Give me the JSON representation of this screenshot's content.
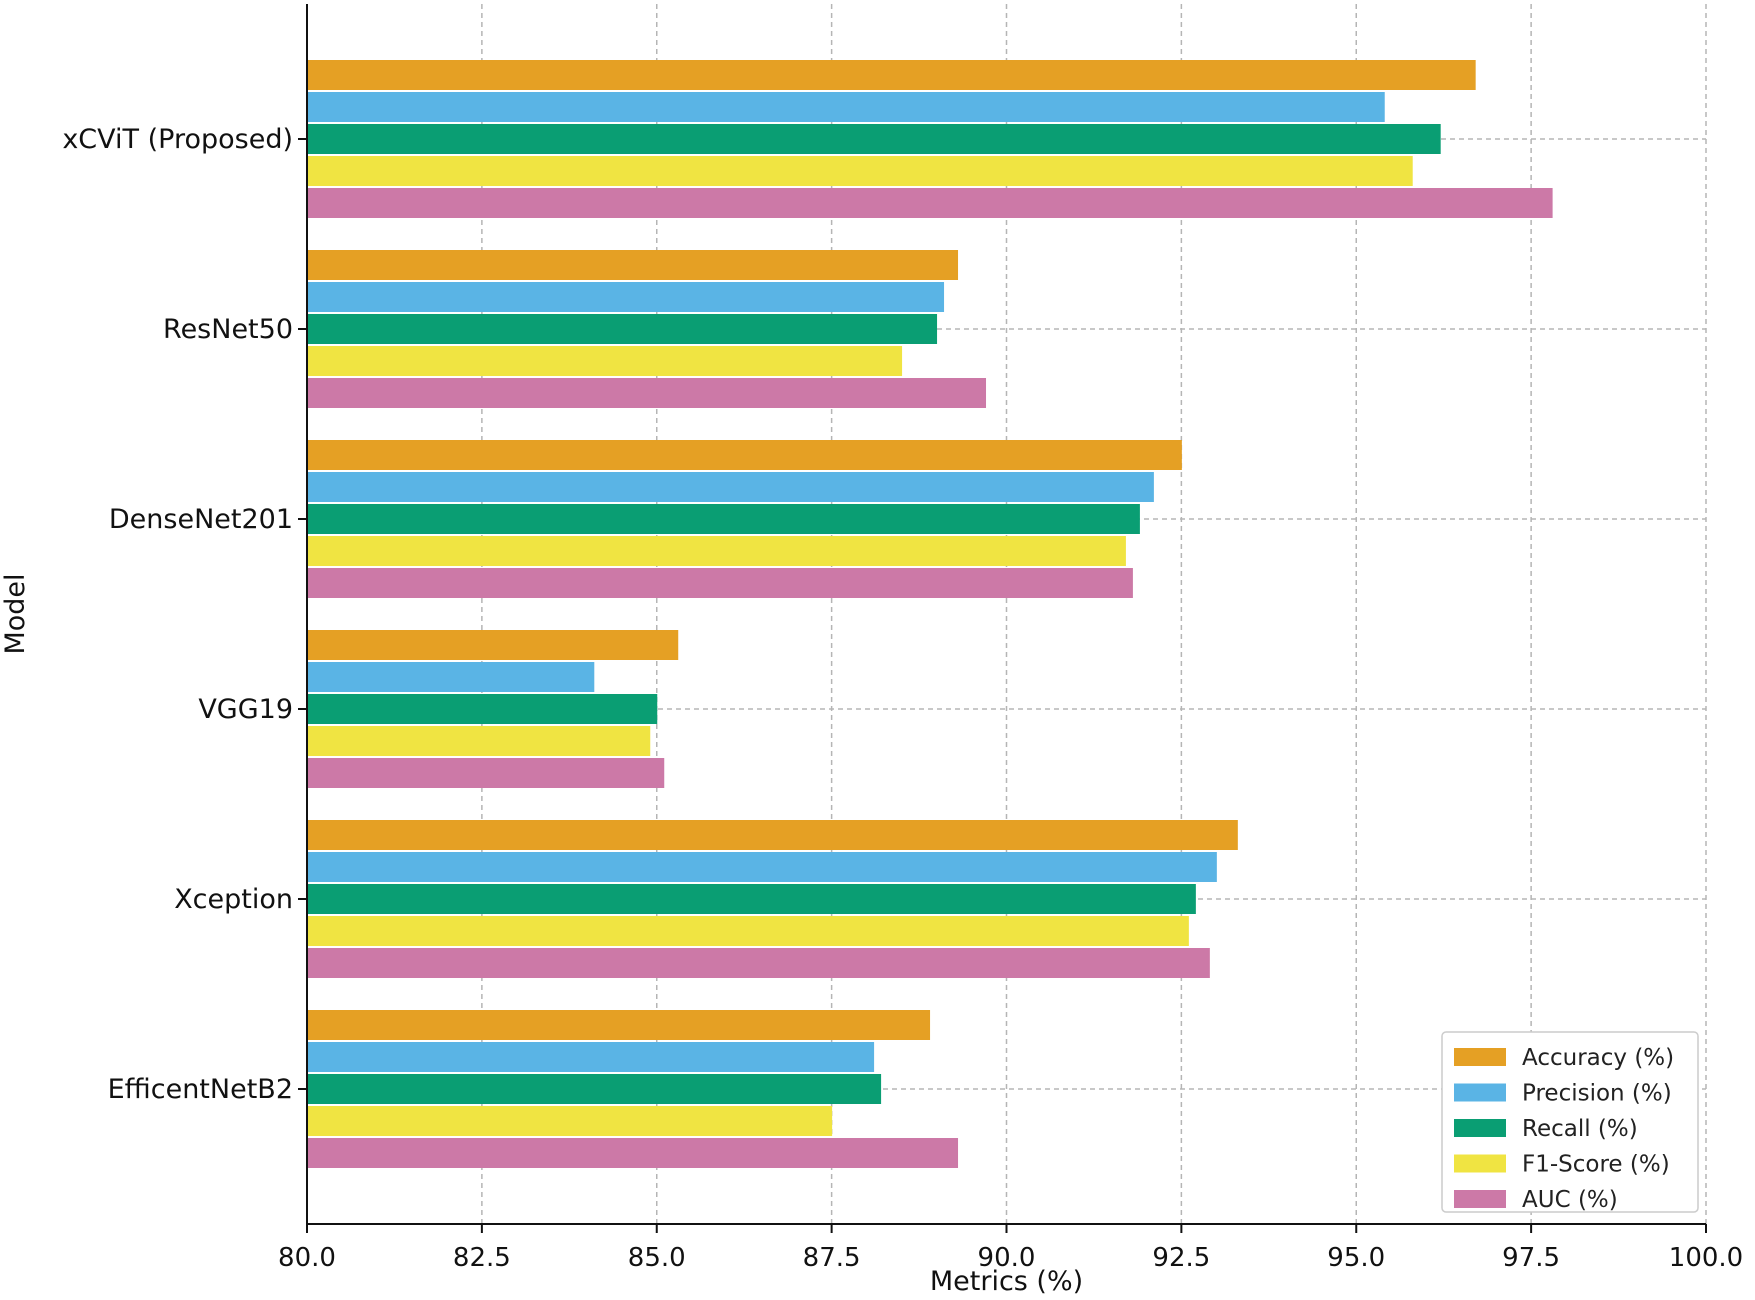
{
  "chart_data": {
    "type": "bar",
    "orientation": "horizontal",
    "title": "",
    "xlabel": "Metrics (%)",
    "ylabel": "Model",
    "xlim": [
      80.0,
      100.0
    ],
    "xticks": [
      "80.0",
      "82.5",
      "85.0",
      "87.5",
      "90.0",
      "92.5",
      "95.0",
      "97.5",
      "100.0"
    ],
    "grid": true,
    "legend_position": "bottom-right",
    "categories": [
      "xCViT (Proposed)",
      "ResNet50",
      "DenseNet201",
      "VGG19",
      "Xception",
      "EfficentNetB2"
    ],
    "series": [
      {
        "name": "Accuracy (%)",
        "color": "#E5A024",
        "values": [
          96.7,
          89.3,
          92.5,
          85.3,
          93.3,
          88.9
        ]
      },
      {
        "name": "Precision (%)",
        "color": "#5AB4E5",
        "values": [
          95.4,
          89.1,
          92.1,
          84.1,
          93.0,
          88.1
        ]
      },
      {
        "name": "Recall (%)",
        "color": "#0A9E73",
        "values": [
          96.2,
          89.0,
          91.9,
          85.0,
          92.7,
          88.2
        ]
      },
      {
        "name": "F1-Score (%)",
        "color": "#F0E442",
        "values": [
          95.8,
          88.5,
          91.7,
          84.9,
          92.6,
          87.5
        ]
      },
      {
        "name": "AUC (%)",
        "color": "#CC79A7",
        "values": [
          97.8,
          89.7,
          91.8,
          85.1,
          92.9,
          89.3
        ]
      }
    ]
  }
}
